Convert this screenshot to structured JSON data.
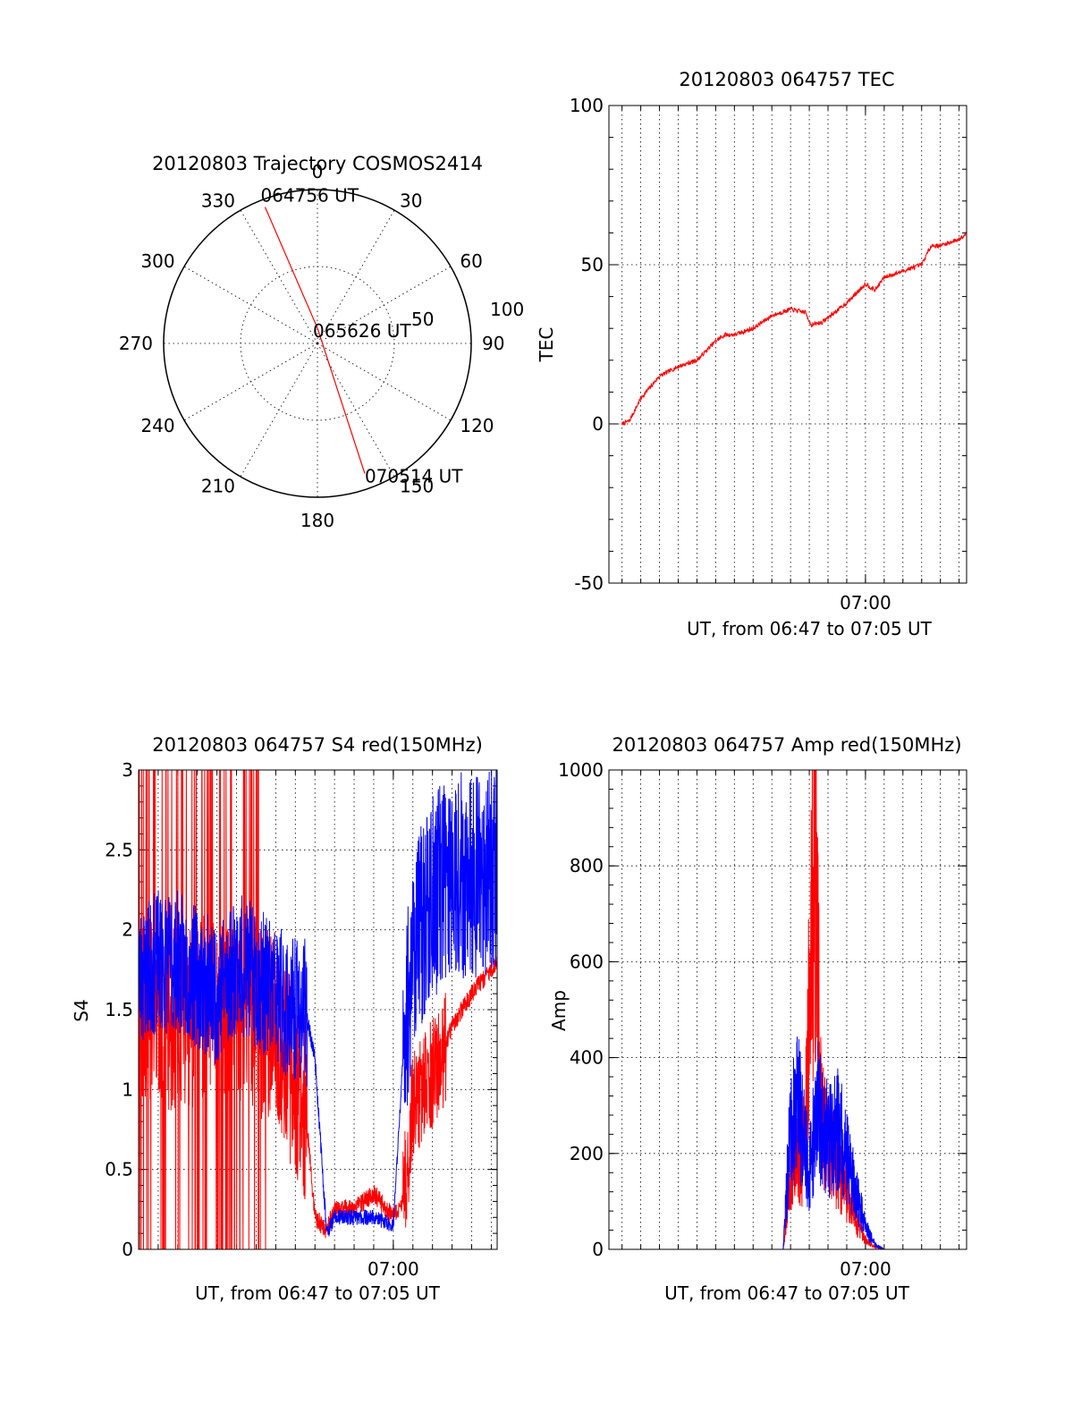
{
  "colors": {
    "red": "#ff0000",
    "blue": "#0000ff",
    "axis": "#000000"
  },
  "chart_data": [
    {
      "type": "polar",
      "title": "20120803 Trajectory COSMOS2414",
      "angle_labels": [
        "0",
        "30",
        "60",
        "90",
        "120",
        "150",
        "180",
        "210",
        "240",
        "270",
        "300",
        "330"
      ],
      "radius_labels": [
        "50",
        "100"
      ],
      "elevation_circles": [
        50,
        100
      ],
      "annotations": [
        "064756 UT",
        "065626 UT",
        "070514 UT"
      ],
      "series": [
        {
          "color": "red",
          "points": [
            {
              "azimuth": 339,
              "elevation": 5,
              "time": "064756 UT"
            },
            {
              "azimuth": 0,
              "elevation": 90,
              "time": "065626 UT"
            },
            {
              "azimuth": 160,
              "elevation": 10,
              "time": "070514 UT"
            }
          ]
        }
      ]
    },
    {
      "type": "line",
      "title": "20120803 064757 TEC",
      "xlabel": "UT, from 06:47 to 07:05 UT",
      "ylabel": "TEC",
      "xlim": [
        -0.7,
        18.4
      ],
      "ylim": [
        -50,
        100
      ],
      "y_ticks": [
        -50,
        0,
        50,
        100
      ],
      "y_tick_labels": [
        "-50",
        "0",
        "50",
        "100"
      ],
      "x_tick_labels": [
        {
          "t": 13.0,
          "label": "07:00"
        }
      ],
      "grid": true,
      "series": [
        {
          "color": "red",
          "x": [
            0,
            0.4,
            1,
            2,
            3,
            3.5,
            4,
            5,
            5.5,
            6,
            7,
            8,
            9,
            9.8,
            10.1,
            10.7,
            12,
            13,
            13.5,
            14,
            15,
            16,
            16.5,
            17,
            17.5,
            18,
            18.4
          ],
          "y": [
            0,
            1,
            8,
            15,
            18,
            19,
            20,
            26,
            28,
            28,
            30,
            34,
            36,
            35,
            31,
            32,
            38,
            44,
            42,
            46,
            48,
            50,
            56,
            56,
            57,
            58,
            60
          ]
        }
      ]
    },
    {
      "type": "line",
      "title": "20120803 064757 S4 red(150MHz)",
      "xlabel": "UT, from 06:47 to 07:05 UT",
      "ylabel": "S4",
      "xlim": [
        0,
        18.3
      ],
      "ylim": [
        0,
        3
      ],
      "y_ticks": [
        0,
        0.5,
        1,
        1.5,
        2,
        2.5,
        3
      ],
      "y_tick_labels": [
        "0",
        "0.5",
        "1",
        "1.5",
        "2",
        "2.5",
        "3"
      ],
      "x_tick_labels": [
        {
          "t": 13.0,
          "label": "07:00"
        }
      ],
      "grid": true,
      "series": [
        {
          "color": "red",
          "x": [
            0,
            1,
            2,
            3,
            4,
            5,
            6,
            7,
            7.8,
            8.5,
            9,
            9.6,
            10,
            11,
            12,
            13,
            13.5,
            14,
            15,
            15.5,
            16,
            17,
            18.3
          ],
          "y": [
            1.5,
            1.5,
            1.4,
            1.5,
            1.5,
            1.5,
            1.4,
            1.4,
            1.1,
            0.9,
            0.2,
            0.12,
            0.25,
            0.25,
            0.35,
            0.2,
            0.3,
            0.9,
            1.1,
            1.2,
            1.4,
            1.6,
            1.8
          ]
        },
        {
          "color": "blue",
          "x": [
            0,
            1,
            2,
            3,
            4,
            5,
            6,
            7,
            7.8,
            8.5,
            9,
            9.6,
            10,
            11,
            12,
            13,
            13.5,
            14,
            15,
            15.5,
            16,
            17,
            18.3
          ],
          "y": [
            1.7,
            1.8,
            1.8,
            1.7,
            1.6,
            1.8,
            1.7,
            1.6,
            1.5,
            1.5,
            1.2,
            0.1,
            0.2,
            0.2,
            0.2,
            0.15,
            1.2,
            1.9,
            2.2,
            2.3,
            2.4,
            2.3,
            2.4
          ]
        }
      ]
    },
    {
      "type": "line",
      "title": "20120803 064757 Amp red(150MHz)",
      "xlabel": "UT, from 06:47 to 07:05 UT",
      "ylabel": "Amp",
      "xlim": [
        -0.7,
        18.4
      ],
      "ylim": [
        0,
        1000
      ],
      "y_ticks": [
        0,
        200,
        400,
        600,
        800,
        1000
      ],
      "y_tick_labels": [
        "0",
        "200",
        "400",
        "600",
        "800",
        "1000"
      ],
      "x_tick_labels": [
        {
          "t": 13.0,
          "label": "07:00"
        }
      ],
      "grid": true,
      "series": [
        {
          "color": "red",
          "x": [
            0,
            4,
            8,
            8.6,
            9.0,
            9.3,
            9.6,
            10,
            10.3,
            10.6,
            11,
            11.5,
            12,
            12.5,
            13,
            13.5,
            14,
            18.4
          ],
          "y": [
            0,
            0,
            0,
            0,
            150,
            200,
            140,
            500,
            880,
            300,
            220,
            180,
            120,
            60,
            20,
            5,
            0,
            0
          ]
        },
        {
          "color": "blue",
          "x": [
            0,
            4,
            8,
            8.6,
            8.9,
            9.3,
            9.7,
            10,
            10.4,
            10.8,
            11.2,
            11.6,
            12,
            12.5,
            13,
            13.5,
            14,
            18.4
          ],
          "y": [
            0,
            0,
            0,
            0,
            200,
            320,
            250,
            160,
            300,
            250,
            230,
            260,
            200,
            120,
            50,
            10,
            0,
            0
          ]
        }
      ]
    }
  ]
}
